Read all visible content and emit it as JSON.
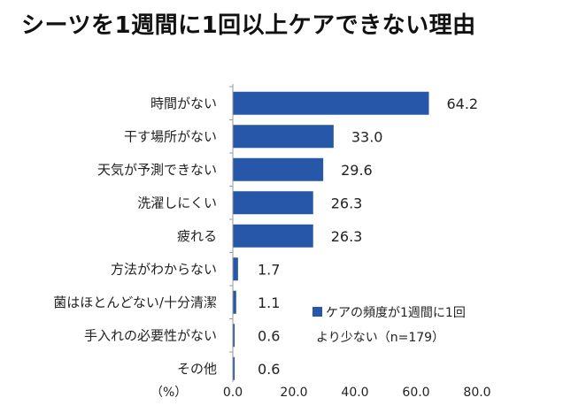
{
  "title": "シーツを1週間に1回以上ケアできない理由",
  "chart_data": {
    "type": "bar",
    "orientation": "horizontal",
    "categories": [
      "時間がない",
      "干す場所がない",
      "天気が予測できない",
      "洗濯しにくい",
      "疲れる",
      "方法がわからない",
      "菌はほとんどない/十分清潔",
      "手入れの必要性がない",
      "その他"
    ],
    "values": [
      64.2,
      33.0,
      29.6,
      26.3,
      26.3,
      1.7,
      1.1,
      0.6,
      0.6
    ],
    "value_labels": [
      "64.2",
      "33.0",
      "29.6",
      "26.3",
      "26.3",
      "1.7",
      "1.1",
      "0.6",
      "0.6"
    ],
    "xlim": [
      0,
      80
    ],
    "xticks": [
      "0.0",
      "20.0",
      "40.0",
      "60.0",
      "80.0"
    ],
    "unit_label": "（%）",
    "legend": [
      "ケアの頻度が1週間に1回",
      "より少ない（n=179）"
    ],
    "legend_placement": "bottom-right",
    "bar_color": "#2757a8",
    "grid": false
  }
}
